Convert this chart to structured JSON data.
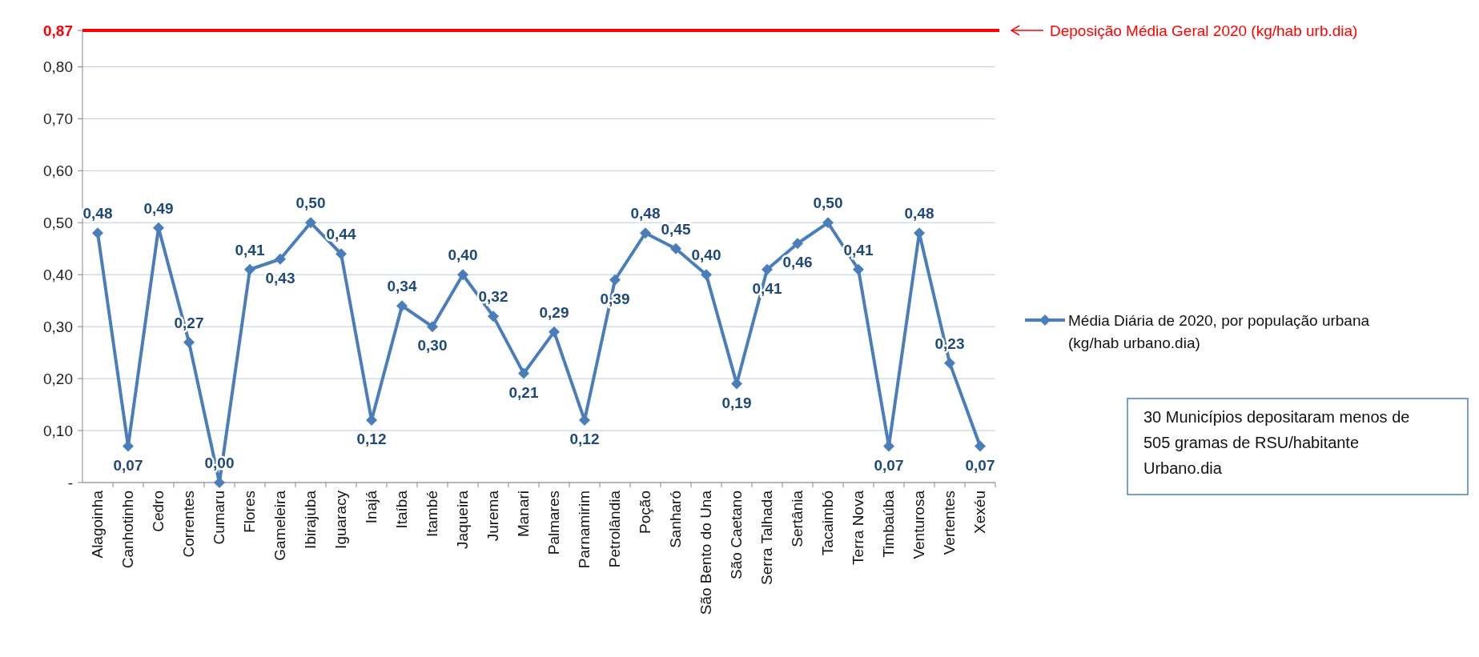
{
  "chart_data": {
    "type": "line",
    "categories": [
      "Alagoinha",
      "Canhotinho",
      "Cedro",
      "Correntes",
      "Cumaru",
      "Flores",
      "Gameleira",
      "Ibirajuba",
      "Iguaracy",
      "Inajá",
      "Itaíba",
      "Itambé",
      "Jaqueira",
      "Jurema",
      "Manari",
      "Palmares",
      "Parnamirim",
      "Petrolândia",
      "Poção",
      "Sanharó",
      "São Bento do Una",
      "São Caetano",
      "Serra Talhada",
      "Sertânia",
      "Tacaimbó",
      "Terra Nova",
      "Timbaúba",
      "Venturosa",
      "Vertentes",
      "Xexéu"
    ],
    "series": [
      {
        "name": "Média Diária de 2020, por população urbana (kg/hab urbano.dia)",
        "color": "#4a7ebb",
        "values": [
          0.48,
          0.07,
          0.49,
          0.27,
          0.0,
          0.41,
          0.43,
          0.5,
          0.44,
          0.12,
          0.34,
          0.3,
          0.4,
          0.32,
          0.21,
          0.29,
          0.12,
          0.39,
          0.48,
          0.45,
          0.4,
          0.19,
          0.41,
          0.46,
          0.5,
          0.41,
          0.07,
          0.48,
          0.23,
          0.07
        ],
        "value_labels": [
          "0,48",
          "0,07",
          "0,49",
          "0,27",
          "0,00",
          "0,41",
          "0,43",
          "0,50",
          "0,44",
          "0,12",
          "0,34",
          "0,30",
          "0,40",
          "0,32",
          "0,21",
          "0,29",
          "0,12",
          "0,39",
          "0,48",
          "0,45",
          "0,40",
          "0,19",
          "0,41",
          "0,46",
          "0,50",
          "0,41",
          "0,07",
          "0,48",
          "0,23",
          "0,07"
        ]
      }
    ],
    "ylim": [
      0,
      0.87
    ],
    "yticks": [
      {
        "value": 0,
        "label": "-"
      },
      {
        "value": 0.1,
        "label": "0,10"
      },
      {
        "value": 0.2,
        "label": "0,20"
      },
      {
        "value": 0.3,
        "label": "0,30"
      },
      {
        "value": 0.4,
        "label": "0,40"
      },
      {
        "value": 0.5,
        "label": "0,50"
      },
      {
        "value": 0.6,
        "label": "0,60"
      },
      {
        "value": 0.7,
        "label": "0,70"
      },
      {
        "value": 0.8,
        "label": "0,80"
      },
      {
        "value": 0.87,
        "label": "0,87"
      }
    ],
    "ref_lines": [
      {
        "axis": "y",
        "value": 0.87,
        "label": "Deposição Média Geral 2020 (kg/hab urb.dia)",
        "color": "#ff0000"
      }
    ],
    "annotations": [
      "30 Municípios depositaram menos de 505 gramas de RSU/habitante Urbano.dia"
    ],
    "grid": "y",
    "legend": "right",
    "marker": "diamond",
    "line_style": "solid"
  }
}
